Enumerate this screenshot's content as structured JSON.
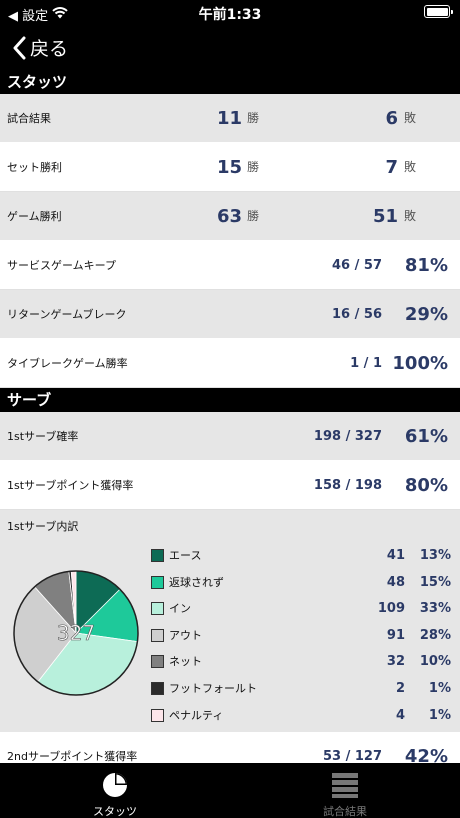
{
  "status_bar": {
    "back_app": "◀ 設定",
    "time": "午前1:33"
  },
  "nav": {
    "back_label": "戻る"
  },
  "sections": {
    "stats": "スタッツ",
    "serve": "サーブ"
  },
  "units": {
    "win": "勝",
    "loss": "敗"
  },
  "win_loss_rows": [
    {
      "label": "試合結果",
      "wins": "11",
      "losses": "6"
    },
    {
      "label": "セット勝利",
      "wins": "15",
      "losses": "7"
    },
    {
      "label": "ゲーム勝利",
      "wins": "63",
      "losses": "51"
    }
  ],
  "ratio_rows": [
    {
      "label": "サービスゲームキープ",
      "fraction": "46 / 57",
      "percent": "81%"
    },
    {
      "label": "リターンゲームブレーク",
      "fraction": "16 / 56",
      "percent": "29%"
    },
    {
      "label": "タイブレークゲーム勝率",
      "fraction": "1 / 1",
      "percent": "100%"
    }
  ],
  "serve_rows": [
    {
      "label": "1stサーブ確率",
      "fraction": "198 / 327",
      "percent": "61%"
    },
    {
      "label": "1stサーブポイント獲得率",
      "fraction": "158 / 198",
      "percent": "80%"
    }
  ],
  "breakdown": {
    "title": "1stサーブ内訳",
    "total": "327",
    "items": [
      {
        "name": "エース",
        "count": "41",
        "percent": "13%",
        "value": 41,
        "color": "#0d6b55"
      },
      {
        "name": "返球されず",
        "count": "48",
        "percent": "15%",
        "value": 48,
        "color": "#1ec99a"
      },
      {
        "name": "イン",
        "count": "109",
        "percent": "33%",
        "value": 109,
        "color": "#b8f0dc"
      },
      {
        "name": "アウト",
        "count": "91",
        "percent": "28%",
        "value": 91,
        "color": "#cfcfcf"
      },
      {
        "name": "ネット",
        "count": "32",
        "percent": "10%",
        "value": 32,
        "color": "#808080"
      },
      {
        "name": "フットフォールト",
        "count": "2",
        "percent": "1%",
        "value": 2,
        "color": "#2b2b2b"
      },
      {
        "name": "ペナルティ",
        "count": "4",
        "percent": "1%",
        "value": 4,
        "color": "#fde6ea"
      }
    ]
  },
  "second_serve_row": {
    "label": "2ndサーブポイント獲得率",
    "fraction": "53 / 127",
    "percent": "42%"
  },
  "tabs": [
    {
      "label": "スタッツ",
      "icon": "pie-chart-icon",
      "active": true
    },
    {
      "label": "試合結果",
      "icon": "list-icon",
      "active": false
    }
  ]
}
